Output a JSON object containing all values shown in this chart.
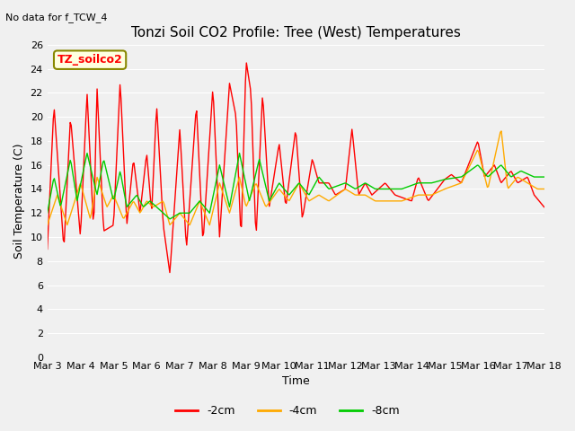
{
  "title": "Tonzi Soil CO2 Profile: Tree (West) Temperatures",
  "subtitle": "No data for f_TCW_4",
  "xlabel": "Time",
  "ylabel": "Soil Temperature (C)",
  "ylim": [
    0,
    26
  ],
  "yticks": [
    0,
    2,
    4,
    6,
    8,
    10,
    12,
    14,
    16,
    18,
    20,
    22,
    24,
    26
  ],
  "xtick_labels": [
    "Mar 3",
    "Mar 4",
    "Mar 5",
    "Mar 6",
    "Mar 7",
    "Mar 8",
    "Mar 9",
    "Mar 10",
    "Mar 11",
    "Mar 12",
    "Mar 13",
    "Mar 14",
    "Mar 15",
    "Mar 16",
    "Mar 17",
    "Mar 18"
  ],
  "legend_label": "TZ_soilco2",
  "line_labels": [
    "-2cm",
    "-4cm",
    "-8cm"
  ],
  "line_colors": [
    "#ff0000",
    "#ffaa00",
    "#00cc00"
  ],
  "background_color": "#f0f0f0",
  "grid_color": "#ffffff",
  "figsize": [
    6.4,
    4.8
  ],
  "dpi": 100,
  "red_keypoints": [
    [
      0.0,
      9.0
    ],
    [
      0.2,
      21.0
    ],
    [
      0.5,
      9.0
    ],
    [
      0.7,
      20.0
    ],
    [
      1.0,
      10.0
    ],
    [
      1.2,
      22.0
    ],
    [
      1.4,
      10.5
    ],
    [
      1.5,
      22.5
    ],
    [
      1.7,
      10.5
    ],
    [
      2.0,
      11.0
    ],
    [
      2.2,
      23.0
    ],
    [
      2.4,
      11.0
    ],
    [
      2.6,
      16.5
    ],
    [
      2.8,
      12.0
    ],
    [
      3.0,
      17.0
    ],
    [
      3.15,
      12.0
    ],
    [
      3.3,
      21.0
    ],
    [
      3.5,
      11.0
    ],
    [
      3.7,
      7.0
    ],
    [
      4.0,
      19.0
    ],
    [
      4.2,
      9.0
    ],
    [
      4.5,
      21.0
    ],
    [
      4.7,
      9.5
    ],
    [
      5.0,
      22.5
    ],
    [
      5.2,
      10.0
    ],
    [
      5.5,
      22.8
    ],
    [
      5.7,
      20.0
    ],
    [
      5.85,
      9.7
    ],
    [
      6.0,
      24.7
    ],
    [
      6.15,
      22.0
    ],
    [
      6.3,
      9.8
    ],
    [
      6.5,
      22.0
    ],
    [
      6.7,
      12.5
    ],
    [
      7.0,
      17.8
    ],
    [
      7.2,
      12.5
    ],
    [
      7.5,
      19.0
    ],
    [
      7.7,
      11.5
    ],
    [
      8.0,
      16.5
    ],
    [
      8.2,
      14.5
    ],
    [
      8.5,
      14.5
    ],
    [
      8.7,
      13.5
    ],
    [
      9.0,
      14.0
    ],
    [
      9.2,
      19.0
    ],
    [
      9.4,
      13.5
    ],
    [
      9.6,
      14.5
    ],
    [
      9.8,
      13.5
    ],
    [
      10.0,
      14.0
    ],
    [
      10.2,
      14.5
    ],
    [
      10.5,
      13.5
    ],
    [
      11.0,
      13.0
    ],
    [
      11.2,
      15.0
    ],
    [
      11.5,
      13.0
    ],
    [
      12.0,
      14.8
    ],
    [
      12.2,
      15.2
    ],
    [
      12.5,
      14.5
    ],
    [
      13.0,
      18.0
    ],
    [
      13.2,
      15.0
    ],
    [
      13.5,
      16.0
    ],
    [
      13.7,
      14.5
    ],
    [
      14.0,
      15.5
    ],
    [
      14.2,
      14.5
    ],
    [
      14.5,
      15.0
    ],
    [
      14.7,
      13.5
    ],
    [
      15.0,
      12.5
    ]
  ],
  "orange_keypoints": [
    [
      0.0,
      11.0
    ],
    [
      0.3,
      13.5
    ],
    [
      0.6,
      11.0
    ],
    [
      1.0,
      14.5
    ],
    [
      1.3,
      11.5
    ],
    [
      1.5,
      15.0
    ],
    [
      1.8,
      12.5
    ],
    [
      2.0,
      13.5
    ],
    [
      2.3,
      11.5
    ],
    [
      2.6,
      13.0
    ],
    [
      2.8,
      12.0
    ],
    [
      3.0,
      13.0
    ],
    [
      3.2,
      12.5
    ],
    [
      3.5,
      13.0
    ],
    [
      3.7,
      11.0
    ],
    [
      4.0,
      12.0
    ],
    [
      4.3,
      11.0
    ],
    [
      4.6,
      13.0
    ],
    [
      4.9,
      11.0
    ],
    [
      5.2,
      14.5
    ],
    [
      5.5,
      12.0
    ],
    [
      5.8,
      15.0
    ],
    [
      6.0,
      12.5
    ],
    [
      6.3,
      14.5
    ],
    [
      6.6,
      12.5
    ],
    [
      7.0,
      14.0
    ],
    [
      7.3,
      13.0
    ],
    [
      7.6,
      14.5
    ],
    [
      7.9,
      13.0
    ],
    [
      8.2,
      13.5
    ],
    [
      8.5,
      13.0
    ],
    [
      9.0,
      14.0
    ],
    [
      9.3,
      13.5
    ],
    [
      9.6,
      13.5
    ],
    [
      9.9,
      13.0
    ],
    [
      10.3,
      13.0
    ],
    [
      10.7,
      13.0
    ],
    [
      11.2,
      13.5
    ],
    [
      11.6,
      13.5
    ],
    [
      12.0,
      14.0
    ],
    [
      12.5,
      14.5
    ],
    [
      13.0,
      17.3
    ],
    [
      13.3,
      14.0
    ],
    [
      13.7,
      19.0
    ],
    [
      13.9,
      14.0
    ],
    [
      14.2,
      15.0
    ],
    [
      14.5,
      14.5
    ],
    [
      14.8,
      14.0
    ],
    [
      15.0,
      14.0
    ]
  ],
  "green_keypoints": [
    [
      0.0,
      12.0
    ],
    [
      0.2,
      15.0
    ],
    [
      0.4,
      12.5
    ],
    [
      0.7,
      16.5
    ],
    [
      0.9,
      13.0
    ],
    [
      1.2,
      17.0
    ],
    [
      1.5,
      13.5
    ],
    [
      1.7,
      16.5
    ],
    [
      2.0,
      13.0
    ],
    [
      2.2,
      15.5
    ],
    [
      2.4,
      12.5
    ],
    [
      2.7,
      13.5
    ],
    [
      2.9,
      12.5
    ],
    [
      3.1,
      13.0
    ],
    [
      3.3,
      12.5
    ],
    [
      3.5,
      12.0
    ],
    [
      3.7,
      11.5
    ],
    [
      4.0,
      12.0
    ],
    [
      4.3,
      12.0
    ],
    [
      4.6,
      13.0
    ],
    [
      4.9,
      12.0
    ],
    [
      5.2,
      16.0
    ],
    [
      5.5,
      12.5
    ],
    [
      5.8,
      17.0
    ],
    [
      6.1,
      13.0
    ],
    [
      6.4,
      16.5
    ],
    [
      6.7,
      13.0
    ],
    [
      7.0,
      14.5
    ],
    [
      7.3,
      13.5
    ],
    [
      7.6,
      14.5
    ],
    [
      7.9,
      13.5
    ],
    [
      8.2,
      15.0
    ],
    [
      8.5,
      14.0
    ],
    [
      9.0,
      14.5
    ],
    [
      9.3,
      14.0
    ],
    [
      9.6,
      14.5
    ],
    [
      9.9,
      14.0
    ],
    [
      10.3,
      14.0
    ],
    [
      10.7,
      14.0
    ],
    [
      11.2,
      14.5
    ],
    [
      11.6,
      14.5
    ],
    [
      12.0,
      14.8
    ],
    [
      12.5,
      15.0
    ],
    [
      13.0,
      16.0
    ],
    [
      13.3,
      15.0
    ],
    [
      13.7,
      16.0
    ],
    [
      14.0,
      15.0
    ],
    [
      14.3,
      15.5
    ],
    [
      14.7,
      15.0
    ],
    [
      15.0,
      15.0
    ]
  ]
}
